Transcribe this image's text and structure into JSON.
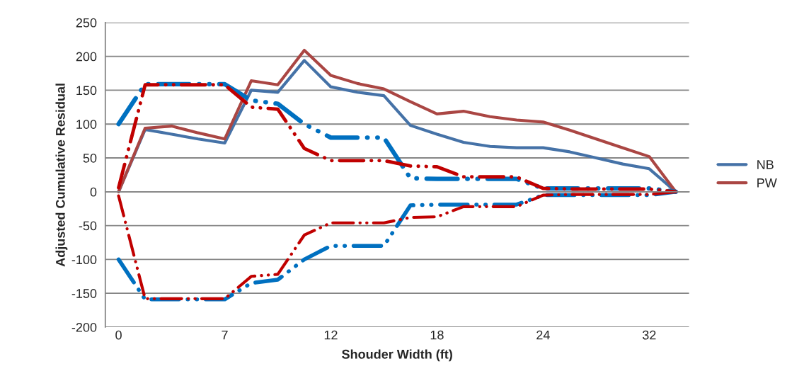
{
  "chart_data": {
    "type": "line",
    "xlabel": "Shouder Width (ft)",
    "ylabel": "Adjusted Cumulative Residual",
    "categories": [
      "0",
      null,
      null,
      null,
      "7",
      null,
      null,
      null,
      "12",
      null,
      null,
      null,
      "18",
      null,
      null,
      null,
      "24",
      null,
      null,
      null,
      "32",
      null
    ],
    "series": [
      {
        "name": "NB",
        "color": "#4572a7",
        "line_style": "solid",
        "values": [
          0,
          92,
          85,
          78,
          72,
          150,
          147,
          194,
          155,
          147,
          142,
          98,
          85,
          73,
          67,
          65,
          65,
          59,
          50,
          41,
          34,
          0
        ]
      },
      {
        "name": "PW",
        "color": "#aa4643",
        "line_style": "solid",
        "values": [
          0,
          94,
          97,
          87,
          78,
          164,
          158,
          209,
          172,
          160,
          152,
          133,
          115,
          119,
          111,
          106,
          103,
          91,
          78,
          65,
          52,
          0
        ]
      },
      {
        "color": "#0070c0",
        "line_style": "dashed",
        "values": [
          100,
          159,
          159,
          159,
          159,
          135,
          130,
          100,
          80,
          80,
          80,
          20,
          19,
          19,
          19,
          19,
          5,
          5,
          5,
          5,
          5,
          0
        ]
      },
      {
        "color": "#0070c0",
        "line_style": "dashed",
        "values": [
          -100,
          -159,
          -159,
          -159,
          -159,
          -135,
          -130,
          -100,
          -80,
          -80,
          -80,
          -20,
          -19,
          -19,
          -19,
          -19,
          -5,
          -5,
          -5,
          -5,
          -5,
          0
        ]
      },
      {
        "color": "#c00000",
        "line_style": "dashed",
        "values": [
          6,
          158,
          158,
          158,
          158,
          125,
          122,
          64,
          46,
          46,
          46,
          38,
          37,
          22,
          22,
          22,
          5,
          4,
          4,
          4,
          4,
          0
        ]
      },
      {
        "color": "#c00000",
        "line_style": "dashed",
        "values": [
          -6,
          -158,
          -158,
          -158,
          -158,
          -125,
          -122,
          -64,
          -46,
          -46,
          -46,
          -38,
          -37,
          -22,
          -22,
          -22,
          -5,
          -4,
          -4,
          -4,
          -4,
          0
        ]
      }
    ],
    "ylim": [
      -200,
      250
    ],
    "yticks": [
      -200,
      -150,
      -100,
      -50,
      0,
      50,
      100,
      150,
      200,
      250
    ],
    "grid": "y",
    "legend": "right",
    "marker": "none"
  }
}
